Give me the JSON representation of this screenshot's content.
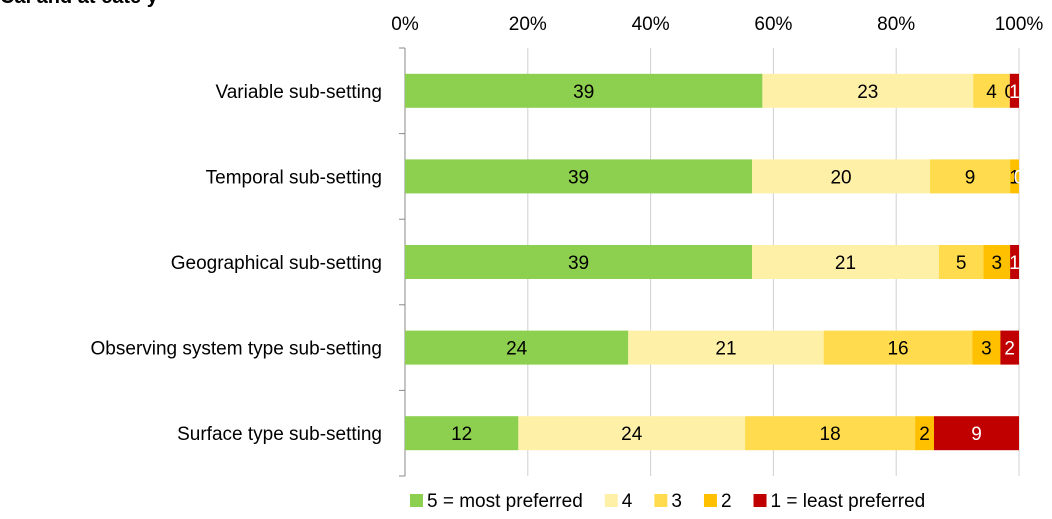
{
  "title_fragment": "Cal and at cate  y",
  "chart_data": {
    "type": "bar",
    "orientation": "horizontal",
    "stacked": "percent",
    "categories": [
      "Variable sub-setting",
      "Temporal sub-setting",
      "Geographical sub-setting",
      "Observing system type sub-setting",
      "Surface type sub-setting"
    ],
    "series": [
      {
        "name": "5 = most preferred",
        "color": "#8dcf4f",
        "values": [
          39,
          39,
          39,
          24,
          12
        ]
      },
      {
        "name": "4",
        "color": "#fff0a8",
        "values": [
          23,
          20,
          21,
          21,
          24
        ]
      },
      {
        "name": "3",
        "color": "#ffdb4d",
        "values": [
          4,
          9,
          5,
          16,
          18
        ]
      },
      {
        "name": "2",
        "color": "#ffc000",
        "values": [
          0,
          1,
          3,
          3,
          2
        ]
      },
      {
        "name": "1 = least preferred",
        "color": "#c00000",
        "values": [
          1,
          0,
          1,
          2,
          9
        ]
      }
    ],
    "xticks": [
      "0%",
      "20%",
      "40%",
      "60%",
      "80%",
      "100%"
    ],
    "xlim": [
      0,
      100
    ],
    "axis_position": "top",
    "grid": true,
    "legend": "bottom"
  }
}
